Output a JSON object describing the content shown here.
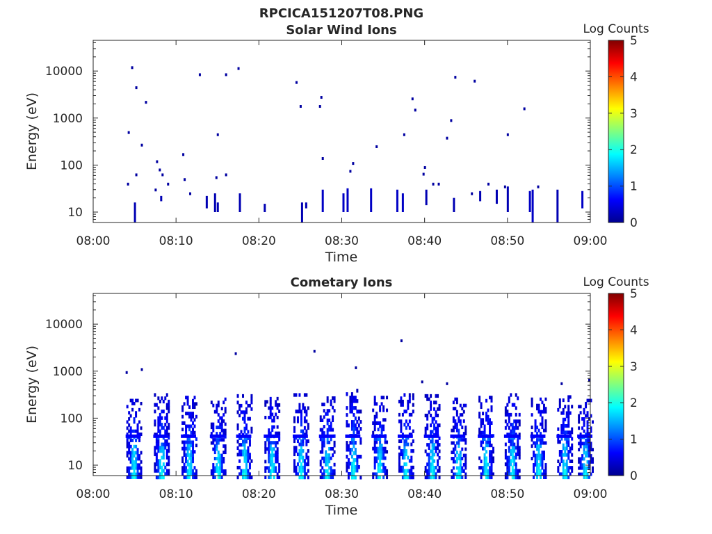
{
  "figure": {
    "title": "RPCICA151207T08.PNG"
  },
  "colorscale": [
    "#00008f",
    "#0000ff",
    "#0080ff",
    "#00ffff",
    "#80ff80",
    "#ffff00",
    "#ff8000",
    "#ff0000",
    "#800000"
  ],
  "chart_data": [
    {
      "type": "heatmap",
      "title": "Solar Wind Ions",
      "xlabel": "Time",
      "ylabel": "Energy (eV)",
      "xlim": [
        "08:00",
        "09:00"
      ],
      "xticks": [
        "08:00",
        "08:10",
        "08:20",
        "08:30",
        "08:40",
        "08:50",
        "09:00"
      ],
      "ylim": [
        6,
        45000
      ],
      "yscale": "log",
      "yticks": [
        {
          "value": 10,
          "label": "10"
        },
        {
          "value": 100,
          "label": "100"
        },
        {
          "value": 1000,
          "label": "1000"
        },
        {
          "value": 10000,
          "label": "10000"
        }
      ],
      "colorbar": {
        "label": "Log Counts",
        "range": [
          0,
          5
        ],
        "ticks": [
          "0",
          "1",
          "2",
          "3",
          "4",
          "5"
        ]
      },
      "points": [
        [
          "08:04:40",
          12000,
          0.1
        ],
        [
          "08:05:10",
          4500,
          0.1
        ],
        [
          "08:06:20",
          2200,
          0.1
        ],
        [
          "08:04:15",
          500,
          0.1
        ],
        [
          "08:05:50",
          270,
          0.1
        ],
        [
          "08:07:40",
          120,
          0.1
        ],
        [
          "08:10:50",
          170,
          0.1
        ],
        [
          "08:12:50",
          8500,
          0.1
        ],
        [
          "08:16:00",
          8500,
          0.1
        ],
        [
          "08:17:30",
          11500,
          0.1
        ],
        [
          "08:15:00",
          450,
          0.1
        ],
        [
          "08:24:30",
          5800,
          0.1
        ],
        [
          "08:25:00",
          1800,
          0.1
        ],
        [
          "08:27:30",
          2800,
          0.1
        ],
        [
          "08:27:20",
          1800,
          0.1
        ],
        [
          "08:27:40",
          140,
          0.1
        ],
        [
          "08:31:20",
          110,
          0.1
        ],
        [
          "08:31:00",
          75,
          0.1
        ],
        [
          "08:34:10",
          250,
          0.1
        ],
        [
          "08:37:30",
          450,
          0.1
        ],
        [
          "08:38:30",
          2600,
          0.1
        ],
        [
          "08:38:50",
          1500,
          0.1
        ],
        [
          "08:40:00",
          90,
          0.1
        ],
        [
          "08:39:50",
          65,
          0.1
        ],
        [
          "08:42:40",
          380,
          0.1
        ],
        [
          "08:43:10",
          900,
          0.1
        ],
        [
          "08:43:40",
          7500,
          0.1
        ],
        [
          "08:46:00",
          6200,
          0.1
        ],
        [
          "08:50:00",
          450,
          0.1
        ],
        [
          "08:52:00",
          1600,
          0.1
        ],
        [
          "08:05:10",
          63,
          0.1
        ],
        [
          "08:08:00",
          80,
          0.1
        ],
        [
          "08:08:20",
          63,
          0.1
        ],
        [
          "08:09:00",
          40,
          0.1
        ],
        [
          "08:11:00",
          50,
          0.1
        ],
        [
          "08:11:40",
          25,
          0.1
        ],
        [
          "08:16:00",
          63,
          0.1
        ],
        [
          "08:04:10",
          40,
          0.1
        ],
        [
          "08:07:30",
          30,
          0.1
        ],
        [
          "08:14:50",
          55,
          0.1
        ],
        [
          "08:41:00",
          40,
          0.1
        ],
        [
          "08:41:40",
          40,
          0.1
        ],
        [
          "08:47:40",
          40,
          0.1
        ],
        [
          "08:49:40",
          35,
          0.1
        ],
        [
          "08:53:40",
          35,
          0.1
        ],
        [
          "08:45:40",
          25,
          0.1
        ]
      ],
      "columns": [
        [
          "08:05:00",
          6,
          16,
          0.2
        ],
        [
          "08:08:10",
          17,
          22,
          0.2
        ],
        [
          "08:13:40",
          12,
          22,
          0.2
        ],
        [
          "08:14:40",
          10,
          25,
          0.2
        ],
        [
          "08:15:00",
          10,
          16,
          0.2
        ],
        [
          "08:17:40",
          10,
          25,
          0.2
        ],
        [
          "08:20:40",
          10,
          15,
          0.2
        ],
        [
          "08:25:10",
          6,
          16,
          0.2
        ],
        [
          "08:25:40",
          12,
          16,
          0.2
        ],
        [
          "08:27:40",
          10,
          30,
          0.3
        ],
        [
          "08:30:10",
          10,
          25,
          0.3
        ],
        [
          "08:30:40",
          10,
          32,
          0.3
        ],
        [
          "08:33:30",
          10,
          32,
          0.3
        ],
        [
          "08:36:40",
          10,
          30,
          0.3
        ],
        [
          "08:37:20",
          10,
          25,
          0.3
        ],
        [
          "08:40:10",
          14,
          30,
          0.2
        ],
        [
          "08:43:30",
          10,
          20,
          0.2
        ],
        [
          "08:46:40",
          17,
          28,
          0.2
        ],
        [
          "08:48:40",
          15,
          30,
          0.2
        ],
        [
          "08:50:00",
          10,
          35,
          0.2
        ],
        [
          "08:52:40",
          10,
          28,
          0.3
        ],
        [
          "08:53:00",
          6,
          30,
          0.3
        ],
        [
          "08:56:00",
          6,
          30,
          0.2
        ],
        [
          "08:59:00",
          12,
          28,
          0.3
        ]
      ]
    },
    {
      "type": "heatmap",
      "title": "Cometary Ions",
      "xlabel": "Time",
      "ylabel": "Energy (eV)",
      "xlim": [
        "08:00",
        "09:00"
      ],
      "xticks": [
        "08:00",
        "08:10",
        "08:20",
        "08:30",
        "08:40",
        "08:50",
        "09:00"
      ],
      "ylim": [
        6,
        45000
      ],
      "yscale": "log",
      "yticks": [
        {
          "value": 10,
          "label": "10"
        },
        {
          "value": 100,
          "label": "100"
        },
        {
          "value": 1000,
          "label": "1000"
        },
        {
          "value": 10000,
          "label": "10000"
        }
      ],
      "colorbar": {
        "label": "Log Counts",
        "range": [
          0,
          5
        ],
        "ticks": [
          "0",
          "1",
          "2",
          "3",
          "4",
          "5"
        ]
      },
      "points": [
        [
          "08:04:00",
          950,
          0.1
        ],
        [
          "08:17:10",
          2400,
          0.1
        ],
        [
          "08:26:40",
          2700,
          0.1
        ],
        [
          "08:37:10",
          4500,
          0.1
        ],
        [
          "08:39:40",
          600,
          0.1
        ],
        [
          "08:42:40",
          550,
          0.1
        ],
        [
          "08:56:30",
          550,
          0.1
        ],
        [
          "08:59:50",
          650,
          0.1
        ],
        [
          "08:31:40",
          1200,
          0.1
        ],
        [
          "08:05:50",
          1100,
          0.1
        ]
      ],
      "bursts": [
        {
          "t": "08:04:50",
          "top": 300
        },
        {
          "t": "08:08:10",
          "top": 400
        },
        {
          "t": "08:11:30",
          "top": 350
        },
        {
          "t": "08:15:00",
          "top": 320
        },
        {
          "t": "08:18:10",
          "top": 380
        },
        {
          "t": "08:21:30",
          "top": 330
        },
        {
          "t": "08:25:00",
          "top": 400
        },
        {
          "t": "08:28:10",
          "top": 340
        },
        {
          "t": "08:31:20",
          "top": 500
        },
        {
          "t": "08:34:30",
          "top": 350
        },
        {
          "t": "08:37:40",
          "top": 400
        },
        {
          "t": "08:40:50",
          "top": 380
        },
        {
          "t": "08:44:00",
          "top": 320
        },
        {
          "t": "08:47:20",
          "top": 350
        },
        {
          "t": "08:50:30",
          "top": 400
        },
        {
          "t": "08:53:40",
          "top": 320
        },
        {
          "t": "08:56:50",
          "top": 360
        },
        {
          "t": "08:59:20",
          "top": 300
        }
      ]
    }
  ]
}
